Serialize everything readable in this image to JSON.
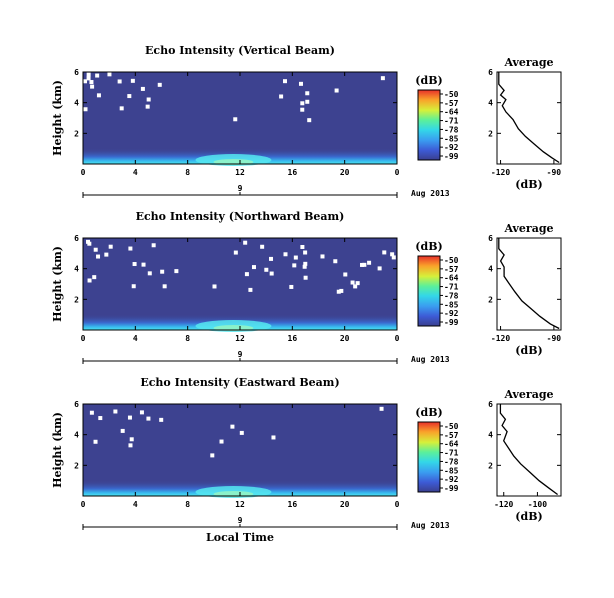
{
  "chart_data": [
    {
      "type": "heatmap",
      "title": "Echo Intensity (Vertical Beam)",
      "ylabel": "Height (km)",
      "xlabel": "",
      "x_ticks": [
        "0",
        "4",
        "8",
        "12",
        "16",
        "20",
        "0"
      ],
      "y_ticks": [
        "6",
        "4",
        "2"
      ],
      "date_ticks": [
        "9"
      ],
      "date_label": "Aug 2013",
      "xlim": [
        0,
        24
      ],
      "ylim": [
        0,
        6
      ],
      "colorbar": {
        "label": "(dB)",
        "ticks": [
          "-50",
          "-57",
          "-64",
          "-71",
          "-78",
          "-85",
          "-92",
          "-99"
        ],
        "range": [
          -99,
          -50
        ]
      },
      "average_profile": {
        "title": "Average",
        "xlabel": "(dB)",
        "x_ticks": [
          "-120",
          "-90"
        ],
        "y_ticks": [
          "6",
          "4",
          "2"
        ],
        "xlim": [
          -122,
          -86
        ],
        "ylim": [
          0,
          6
        ],
        "points": [
          [
            -87,
            0.1
          ],
          [
            -91,
            0.4
          ],
          [
            -96,
            0.8
          ],
          [
            -101,
            1.3
          ],
          [
            -106,
            1.8
          ],
          [
            -110,
            2.3
          ],
          [
            -113,
            2.9
          ],
          [
            -117,
            3.4
          ],
          [
            -119,
            3.8
          ],
          [
            -117,
            4.2
          ],
          [
            -120,
            4.5
          ],
          [
            -118,
            4.8
          ],
          [
            -121,
            5.2
          ],
          [
            -121,
            6.0
          ]
        ]
      }
    },
    {
      "type": "heatmap",
      "title": "Echo Intensity (Northward Beam)",
      "ylabel": "Height (km)",
      "xlabel": "",
      "x_ticks": [
        "0",
        "4",
        "8",
        "12",
        "16",
        "20",
        "0"
      ],
      "y_ticks": [
        "6",
        "4",
        "2"
      ],
      "date_ticks": [
        "9"
      ],
      "date_label": "Aug 2013",
      "xlim": [
        0,
        24
      ],
      "ylim": [
        0,
        6
      ],
      "colorbar": {
        "label": "(dB)",
        "ticks": [
          "-50",
          "-57",
          "-64",
          "-71",
          "-78",
          "-85",
          "-92",
          "-99"
        ],
        "range": [
          -99,
          -50
        ]
      },
      "average_profile": {
        "title": "Average",
        "xlabel": "(dB)",
        "x_ticks": [
          "-120",
          "-90"
        ],
        "y_ticks": [
          "6",
          "4",
          "2"
        ],
        "xlim": [
          -122,
          -86
        ],
        "ylim": [
          0,
          6
        ],
        "points": [
          [
            -87,
            0.1
          ],
          [
            -92,
            0.4
          ],
          [
            -98,
            0.9
          ],
          [
            -103,
            1.4
          ],
          [
            -108,
            1.9
          ],
          [
            -112,
            2.5
          ],
          [
            -115,
            3.0
          ],
          [
            -118,
            3.5
          ],
          [
            -118,
            4.1
          ],
          [
            -120,
            4.5
          ],
          [
            -118,
            4.9
          ],
          [
            -121,
            5.3
          ],
          [
            -121,
            6.0
          ]
        ]
      }
    },
    {
      "type": "heatmap",
      "title": "Echo Intensity (Eastward Beam)",
      "ylabel": "Height (km)",
      "xlabel": "Local Time",
      "x_ticks": [
        "0",
        "4",
        "8",
        "12",
        "16",
        "20",
        "0"
      ],
      "y_ticks": [
        "6",
        "4",
        "2"
      ],
      "date_ticks": [
        "9"
      ],
      "date_label": "Aug 2013",
      "xlim": [
        0,
        24
      ],
      "ylim": [
        0,
        6
      ],
      "colorbar": {
        "label": "(dB)",
        "ticks": [
          "-50",
          "-57",
          "-64",
          "-71",
          "-78",
          "-85",
          "-92",
          "-99"
        ],
        "range": [
          -99,
          -50
        ]
      },
      "average_profile": {
        "title": "Average",
        "xlabel": "(dB)",
        "x_ticks": [
          "-120",
          "-100"
        ],
        "y_ticks": [
          "6",
          "4",
          "2"
        ],
        "xlim": [
          -124,
          -86
        ],
        "ylim": [
          0,
          6
        ],
        "points": [
          [
            -88,
            0.1
          ],
          [
            -93,
            0.5
          ],
          [
            -99,
            1.0
          ],
          [
            -104,
            1.5
          ],
          [
            -110,
            2.1
          ],
          [
            -114,
            2.6
          ],
          [
            -117,
            3.1
          ],
          [
            -120,
            3.6
          ],
          [
            -118,
            4.2
          ],
          [
            -121,
            4.6
          ],
          [
            -119,
            5.0
          ],
          [
            -122,
            5.4
          ],
          [
            -122,
            6.0
          ]
        ]
      }
    }
  ]
}
